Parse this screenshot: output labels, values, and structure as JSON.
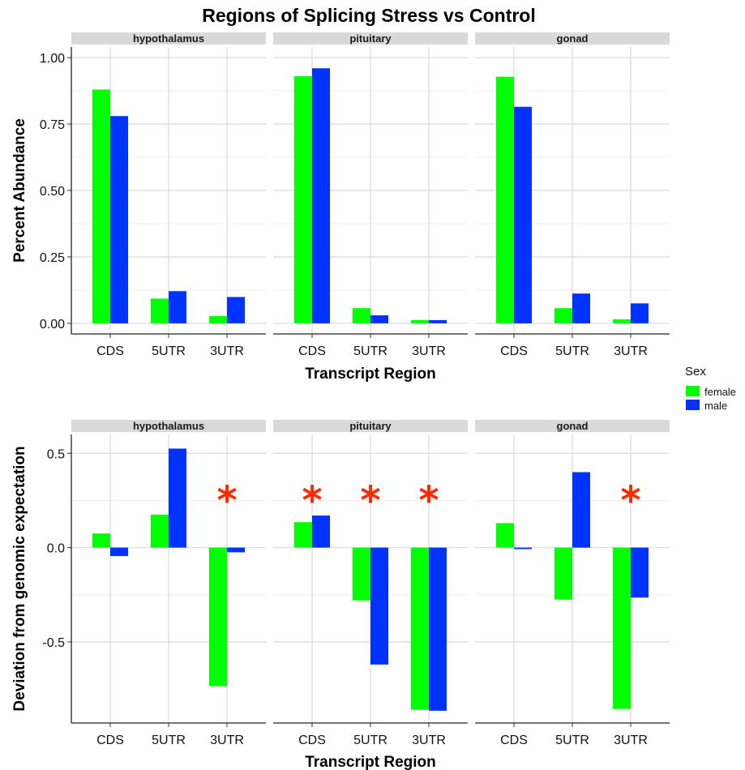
{
  "chart_data": {
    "type": "bar",
    "title": "Regions of Splicing Stress vs Control",
    "categories": [
      "CDS",
      "5UTR",
      "3UTR"
    ],
    "facets": [
      "hypothalamus",
      "pituitary",
      "gonad"
    ],
    "legend": {
      "title": "Sex",
      "placement": "right",
      "entries": [
        {
          "name": "female",
          "color": "#00FF00"
        },
        {
          "name": "male",
          "color": "#0033FF"
        }
      ]
    },
    "star_color": "#FF2A00",
    "panels": [
      {
        "xlabel": "Transcript Region",
        "ylabel": "Percent Abundance",
        "ylim": [
          -0.04,
          1.04
        ],
        "yticks": [
          0.0,
          0.25,
          0.5,
          0.75,
          1.0
        ],
        "ytick_labels": [
          "0.00",
          "0.25",
          "0.50",
          "0.75",
          "1.00"
        ],
        "star_text": "",
        "data": {
          "hypothalamus": {
            "female": [
              0.88,
              0.093,
              0.027
            ],
            "male": [
              0.78,
              0.121,
              0.099
            ],
            "stars": [
              false,
              false,
              false
            ]
          },
          "pituitary": {
            "female": [
              0.93,
              0.057,
              0.012
            ],
            "male": [
              0.96,
              0.03,
              0.012
            ],
            "stars": [
              false,
              false,
              false
            ]
          },
          "gonad": {
            "female": [
              0.928,
              0.057,
              0.015
            ],
            "male": [
              0.815,
              0.112,
              0.075
            ],
            "stars": [
              false,
              false,
              false
            ]
          }
        }
      },
      {
        "xlabel": "Transcript Region",
        "ylabel": "Deviation from genomic expectation",
        "ylim": [
          -0.93,
          0.6
        ],
        "yticks": [
          -0.5,
          0.0,
          0.5
        ],
        "ytick_labels": [
          "-0.5",
          "0.0",
          "0.5"
        ],
        "star_text": "*",
        "data": {
          "hypothalamus": {
            "female": [
              0.075,
              0.175,
              -0.735
            ],
            "male": [
              -0.045,
              0.525,
              -0.025
            ],
            "stars": [
              false,
              false,
              true
            ]
          },
          "pituitary": {
            "female": [
              0.135,
              -0.28,
              -0.86
            ],
            "male": [
              0.17,
              -0.62,
              -0.865
            ],
            "stars": [
              true,
              true,
              true
            ]
          },
          "gonad": {
            "female": [
              0.13,
              -0.275,
              -0.855
            ],
            "male": [
              -0.008,
              0.4,
              -0.265
            ],
            "stars": [
              false,
              false,
              true
            ]
          }
        }
      }
    ]
  }
}
